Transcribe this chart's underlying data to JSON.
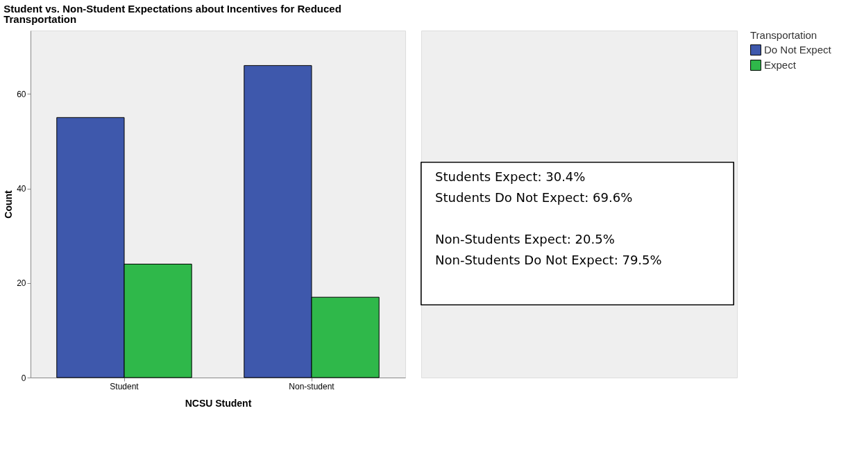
{
  "chart_data": {
    "type": "bar",
    "title": "Student vs. Non-Student Expectations about Incentives for Reduced Transportation",
    "xlabel": "NCSU Student",
    "ylabel": "Count",
    "legend_title": "Transportation",
    "categories": [
      "Student",
      "Non-student"
    ],
    "series": [
      {
        "name": "Do Not Expect",
        "color": "#3e58ac",
        "values": [
          55,
          66
        ]
      },
      {
        "name": "Expect",
        "color": "#2fb84a",
        "values": [
          24,
          17
        ]
      }
    ],
    "ylim": [
      0,
      73.4
    ],
    "yticks": [
      0,
      20,
      40,
      60
    ],
    "grid": false,
    "legend": "top right",
    "annotations": [
      "Students Expect: 30.4%",
      "Students Do Not Expect: 69.6%",
      "Non-Students Expect: 20.5%",
      "Non-Students Do Not Expect: 79.5%"
    ]
  }
}
